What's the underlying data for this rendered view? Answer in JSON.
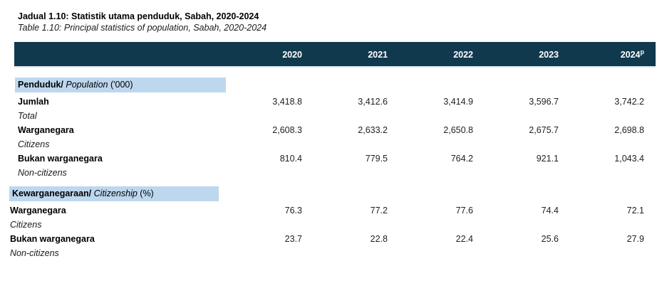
{
  "title": {
    "line1_my": "Jadual 1.10: Statistik utama penduduk, Sabah, 2020-2024",
    "line2_en": "Table 1.10: Principal statistics of population, Sabah, 2020-2024"
  },
  "colors": {
    "header_bg": "#10394e",
    "header_text": "#ffffff",
    "section_highlight_bg": "#bdd7ee"
  },
  "table": {
    "years": [
      {
        "label": "2020",
        "sup": ""
      },
      {
        "label": "2021",
        "sup": ""
      },
      {
        "label": "2022",
        "sup": ""
      },
      {
        "label": "2023",
        "sup": ""
      },
      {
        "label": "2024",
        "sup": "p"
      }
    ],
    "sections": [
      {
        "heading": {
          "bold": "Penduduk/",
          "italic": "Population",
          "normal": "('000)"
        },
        "rows": [
          {
            "label_my": "Jumlah",
            "label_en": "Total",
            "values": [
              "3,418.8",
              "3,412.6",
              "3,414.9",
              "3,596.7",
              "3,742.2"
            ]
          },
          {
            "label_my": "Warganegara",
            "label_en": "Citizens",
            "values": [
              "2,608.3",
              "2,633.2",
              "2,650.8",
              "2,675.7",
              "2,698.8"
            ]
          },
          {
            "label_my": "Bukan warganegara",
            "label_en": "Non-citizens",
            "values": [
              "810.4",
              "779.5",
              "764.2",
              "921.1",
              "1,043.4"
            ]
          }
        ]
      },
      {
        "heading": {
          "bold": "Kewarganegaraan/",
          "italic": "Citizenship",
          "normal": "(%)"
        },
        "rows": [
          {
            "label_my": "Warganegara",
            "label_en": "Citizens",
            "values": [
              "76.3",
              "77.2",
              "77.6",
              "74.4",
              "72.1"
            ]
          },
          {
            "label_my": "Bukan warganegara",
            "label_en": "Non-citizens",
            "values": [
              "23.7",
              "22.8",
              "22.4",
              "25.6",
              "27.9"
            ]
          }
        ]
      }
    ]
  }
}
